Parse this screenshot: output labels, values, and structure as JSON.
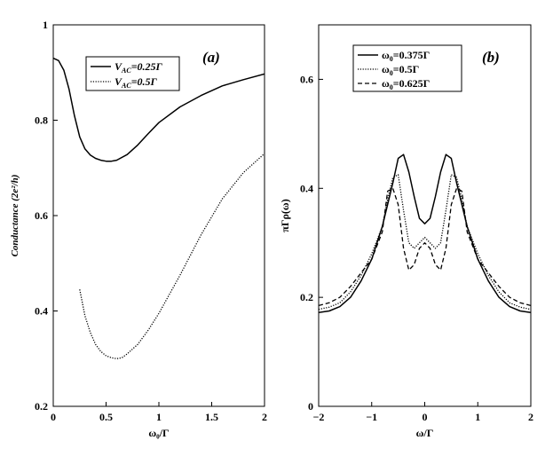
{
  "chart_data": [
    {
      "type": "line",
      "panel_label": "(a)",
      "xlabel": "ω₀/Γ",
      "ylabel": "Conductance (2e²/h)",
      "xlim": [
        0,
        2
      ],
      "ylim": [
        0.2,
        1.0
      ],
      "xticks": [
        "0",
        "0.5",
        "1",
        "1.5",
        "2"
      ],
      "yticks": [
        "0.2",
        "0.4",
        "0.6",
        "0.8",
        "1"
      ],
      "legend_position": "top-center",
      "series": [
        {
          "name": "V_AC=0.25Γ",
          "legend_main": "V",
          "legend_sub": "AC",
          "legend_rest": "=0.25Γ",
          "style": "solid",
          "x": [
            0,
            0.05,
            0.1,
            0.15,
            0.2,
            0.25,
            0.3,
            0.35,
            0.4,
            0.45,
            0.5,
            0.55,
            0.6,
            0.7,
            0.8,
            0.9,
            1.0,
            1.2,
            1.4,
            1.6,
            1.8,
            2.0
          ],
          "y": [
            0.93,
            0.925,
            0.905,
            0.865,
            0.81,
            0.765,
            0.74,
            0.727,
            0.72,
            0.716,
            0.714,
            0.714,
            0.716,
            0.728,
            0.748,
            0.772,
            0.795,
            0.828,
            0.852,
            0.872,
            0.885,
            0.897
          ]
        },
        {
          "name": "V_AC=0.5Γ",
          "legend_main": "V",
          "legend_sub": "AC",
          "legend_rest": "=0.5Γ",
          "style": "dotted",
          "x": [
            0.25,
            0.3,
            0.35,
            0.4,
            0.45,
            0.5,
            0.55,
            0.6,
            0.65,
            0.7,
            0.8,
            0.9,
            1.0,
            1.2,
            1.4,
            1.6,
            1.8,
            2.0
          ],
          "y": [
            0.445,
            0.39,
            0.355,
            0.33,
            0.315,
            0.306,
            0.302,
            0.3,
            0.302,
            0.31,
            0.33,
            0.36,
            0.395,
            0.475,
            0.56,
            0.635,
            0.69,
            0.73
          ]
        }
      ]
    },
    {
      "type": "line",
      "panel_label": "(b)",
      "xlabel": "ω/Γ",
      "ylabel": "πΓρ(ω)",
      "xlim": [
        -2,
        2
      ],
      "ylim": [
        0,
        0.7
      ],
      "xticks": [
        "−2",
        "−1",
        "0",
        "1",
        "2"
      ],
      "yticks": [
        "0",
        "0.2",
        "0.4",
        "0.6"
      ],
      "legend_position": "top-left",
      "series": [
        {
          "name": "ω₀=0.375Γ",
          "legend_main": "ω",
          "legend_sub": "0",
          "legend_rest": "=0.375Γ",
          "style": "solid",
          "x": [
            -2,
            -1.8,
            -1.6,
            -1.4,
            -1.2,
            -1.0,
            -0.8,
            -0.6,
            -0.5,
            -0.4,
            -0.3,
            -0.2,
            -0.1,
            0,
            0.1,
            0.2,
            0.3,
            0.4,
            0.5,
            0.6,
            0.8,
            1.0,
            1.2,
            1.4,
            1.6,
            1.8,
            2.0
          ],
          "y": [
            0.172,
            0.175,
            0.183,
            0.2,
            0.23,
            0.27,
            0.33,
            0.41,
            0.455,
            0.462,
            0.43,
            0.385,
            0.345,
            0.335,
            0.345,
            0.385,
            0.43,
            0.462,
            0.455,
            0.41,
            0.33,
            0.27,
            0.23,
            0.2,
            0.183,
            0.175,
            0.172
          ]
        },
        {
          "name": "ω₀=0.5Γ",
          "legend_main": "ω",
          "legend_sub": "0",
          "legend_rest": "=0.5Γ",
          "style": "dotted",
          "x": [
            -2,
            -1.8,
            -1.6,
            -1.4,
            -1.2,
            -1.0,
            -0.8,
            -0.7,
            -0.6,
            -0.5,
            -0.4,
            -0.3,
            -0.2,
            -0.1,
            0,
            0.1,
            0.2,
            0.3,
            0.4,
            0.5,
            0.6,
            0.7,
            0.8,
            1.0,
            1.2,
            1.4,
            1.6,
            1.8,
            2.0
          ],
          "y": [
            0.178,
            0.182,
            0.19,
            0.21,
            0.24,
            0.28,
            0.33,
            0.38,
            0.42,
            0.425,
            0.36,
            0.3,
            0.29,
            0.3,
            0.31,
            0.3,
            0.29,
            0.3,
            0.36,
            0.425,
            0.42,
            0.38,
            0.33,
            0.28,
            0.24,
            0.21,
            0.19,
            0.182,
            0.178
          ]
        },
        {
          "name": "ω₀=0.625Γ",
          "legend_main": "ω",
          "legend_sub": "0",
          "legend_rest": "=0.625Γ",
          "style": "dashed",
          "x": [
            -2,
            -1.8,
            -1.6,
            -1.4,
            -1.2,
            -1.0,
            -0.8,
            -0.7,
            -0.6,
            -0.5,
            -0.4,
            -0.3,
            -0.2,
            -0.1,
            0,
            0.1,
            0.2,
            0.3,
            0.4,
            0.5,
            0.6,
            0.7,
            0.8,
            1.0,
            1.2,
            1.4,
            1.6,
            1.8,
            2.0
          ],
          "y": [
            0.185,
            0.19,
            0.2,
            0.22,
            0.245,
            0.27,
            0.32,
            0.395,
            0.4,
            0.37,
            0.29,
            0.25,
            0.26,
            0.29,
            0.3,
            0.29,
            0.26,
            0.25,
            0.29,
            0.37,
            0.4,
            0.395,
            0.32,
            0.27,
            0.245,
            0.22,
            0.2,
            0.19,
            0.185
          ]
        }
      ]
    }
  ]
}
